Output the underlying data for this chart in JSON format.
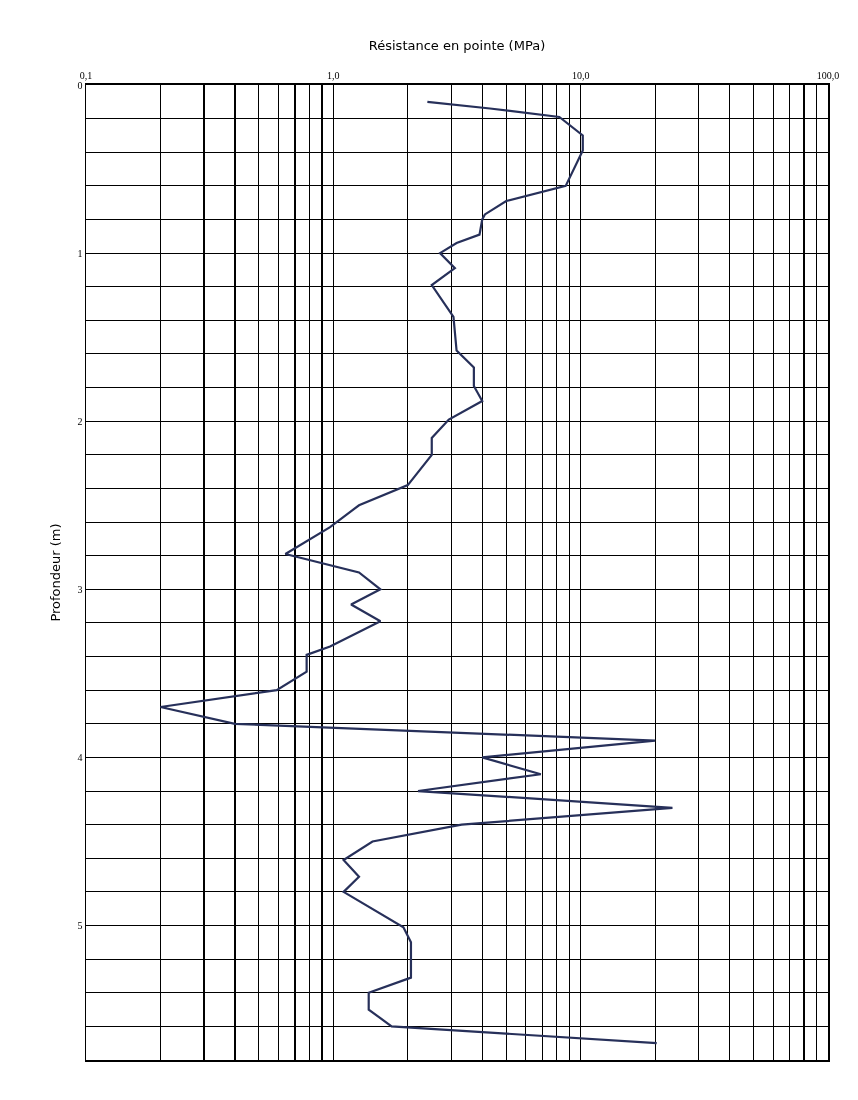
{
  "chart_data": {
    "type": "line",
    "xlabel": "Résistance en pointe (MPa)",
    "ylabel": "Profondeur (m)",
    "log": "x",
    "grid": true,
    "legend": false,
    "marker": "none",
    "line_style": "solid",
    "xlim": [
      0.1,
      100
    ],
    "ylim": [
      5.8,
      0
    ],
    "xticks": [
      {
        "value": 0.1,
        "label": "0,1"
      },
      {
        "value": 0.2,
        "label": null
      },
      {
        "value": 0.3,
        "label": null
      },
      {
        "value": 0.4,
        "label": null
      },
      {
        "value": 0.5,
        "label": null
      },
      {
        "value": 0.6,
        "label": null
      },
      {
        "value": 0.7,
        "label": null
      },
      {
        "value": 0.8,
        "label": null
      },
      {
        "value": 0.9,
        "label": null
      },
      {
        "value": 1,
        "label": "1,0"
      },
      {
        "value": 2,
        "label": null
      },
      {
        "value": 3,
        "label": null
      },
      {
        "value": 4,
        "label": null
      },
      {
        "value": 5,
        "label": null
      },
      {
        "value": 6,
        "label": null
      },
      {
        "value": 7,
        "label": null
      },
      {
        "value": 8,
        "label": null
      },
      {
        "value": 9,
        "label": null
      },
      {
        "value": 10,
        "label": "10,0"
      },
      {
        "value": 20,
        "label": null
      },
      {
        "value": 30,
        "label": null
      },
      {
        "value": 40,
        "label": null
      },
      {
        "value": 50,
        "label": null
      },
      {
        "value": 60,
        "label": null
      },
      {
        "value": 70,
        "label": null
      },
      {
        "value": 80,
        "label": null
      },
      {
        "value": 90,
        "label": null
      },
      {
        "value": 100,
        "label": "100,0"
      }
    ],
    "yticks": [
      0,
      {
        "value": 0.2,
        "label": null
      },
      {
        "value": 0.4,
        "label": null
      },
      {
        "value": 0.6,
        "label": null
      },
      {
        "value": 0.8,
        "label": null
      },
      1,
      {
        "value": 1.2,
        "label": null
      },
      {
        "value": 1.4,
        "label": null
      },
      {
        "value": 1.6,
        "label": null
      },
      {
        "value": 1.8,
        "label": null
      },
      2,
      {
        "value": 2.2,
        "label": null
      },
      {
        "value": 2.4,
        "label": null
      },
      {
        "value": 2.6,
        "label": null
      },
      {
        "value": 2.8,
        "label": null
      },
      3,
      {
        "value": 3.2,
        "label": null
      },
      {
        "value": 3.4,
        "label": null
      },
      {
        "value": 3.6,
        "label": null
      },
      {
        "value": 3.8,
        "label": null
      },
      4,
      {
        "value": 4.2,
        "label": null
      },
      {
        "value": 4.4,
        "label": null
      },
      {
        "value": 4.6,
        "label": null
      },
      {
        "value": 4.8,
        "label": null
      },
      5,
      {
        "value": 5.2,
        "label": null
      },
      {
        "value": 5.4,
        "label": null
      },
      {
        "value": 5.6,
        "label": null
      }
    ],
    "series": [
      {
        "color": "#27305a",
        "x": [
          2.4,
          4.3,
          8.2,
          10.2,
          10.2,
          8.7,
          5.0,
          4.1,
          4.0,
          3.9,
          3.15,
          2.7,
          3.1,
          2.5,
          3.06,
          3.15,
          3.7,
          3.7,
          4.0,
          2.93,
          2.5,
          2.5,
          2.0,
          1.27,
          0.97,
          0.64,
          1.27,
          1.55,
          1.18,
          1.55,
          0.97,
          0.78,
          0.78,
          0.59,
          0.2,
          0.4,
          20,
          4.0,
          6.9,
          2.2,
          23.5,
          3.3,
          1.44,
          1.1,
          1.27,
          1.1,
          1.92,
          2.06,
          2.06,
          1.39,
          1.39,
          1.72,
          20.3
        ],
        "values": [
          0.1,
          0.14,
          0.19,
          0.3,
          0.39,
          0.6,
          0.69,
          0.77,
          0.8,
          0.89,
          0.94,
          1.0,
          1.09,
          1.19,
          1.38,
          1.58,
          1.68,
          1.79,
          1.88,
          1.99,
          2.1,
          2.2,
          2.38,
          2.5,
          2.63,
          2.79,
          2.9,
          3.0,
          3.09,
          3.19,
          3.34,
          3.39,
          3.49,
          3.6,
          3.7,
          3.8,
          3.9,
          4.0,
          4.1,
          4.2,
          4.3,
          4.4,
          4.5,
          4.61,
          4.71,
          4.8,
          5.01,
          5.1,
          5.31,
          5.4,
          5.5,
          5.6,
          5.7
        ]
      }
    ]
  }
}
